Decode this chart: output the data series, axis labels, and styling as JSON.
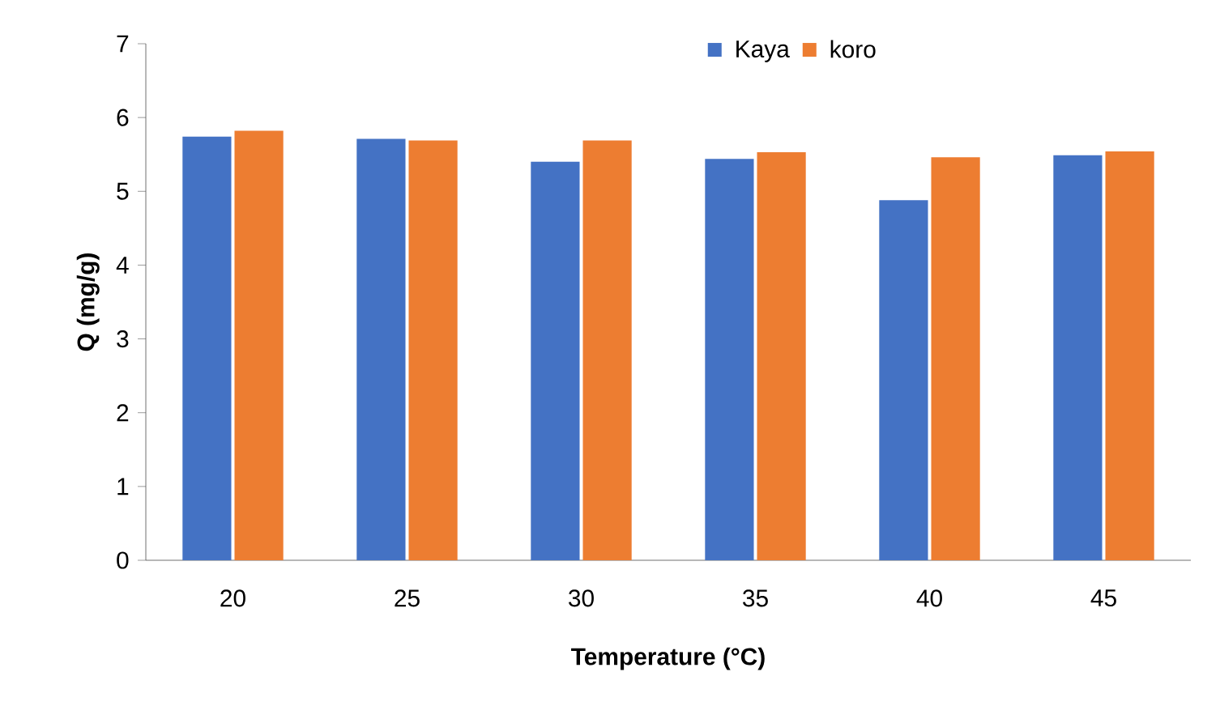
{
  "chart_data": {
    "type": "bar",
    "xlabel": "Temperature (°C)",
    "ylabel": "Q (mg/g)",
    "categories": [
      "20",
      "25",
      "30",
      "35",
      "40",
      "45"
    ],
    "series": [
      {
        "name": "Kaya",
        "color": "#4472c4",
        "values": [
          5.74,
          5.71,
          5.4,
          5.44,
          4.88,
          5.49
        ]
      },
      {
        "name": "koro",
        "color": "#ed7d31",
        "values": [
          5.82,
          5.69,
          5.69,
          5.53,
          5.46,
          5.54
        ]
      }
    ],
    "ylim": [
      0,
      7
    ],
    "yticks": [
      0,
      1,
      2,
      3,
      4,
      5,
      6,
      7
    ],
    "grid": false,
    "legend": "top"
  }
}
